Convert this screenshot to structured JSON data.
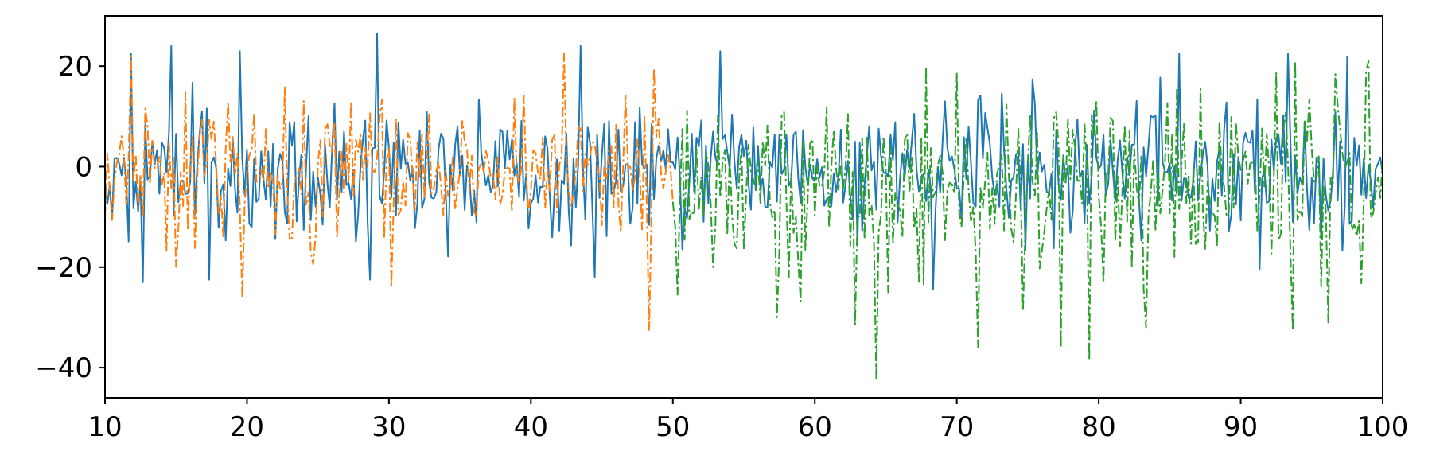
{
  "chart_data": {
    "type": "line",
    "title": "",
    "xlabel": "",
    "ylabel": "",
    "xlim": [
      10,
      100
    ],
    "ylim": [
      -46,
      30
    ],
    "grid": false,
    "legend": "none",
    "x_ticks": [
      10,
      20,
      30,
      40,
      50,
      60,
      70,
      80,
      90,
      100
    ],
    "y_ticks": [
      20,
      0,
      -20,
      -40
    ],
    "x_tick_labels": [
      "10",
      "20",
      "30",
      "40",
      "50",
      "60",
      "70",
      "80",
      "90",
      "100"
    ],
    "y_tick_labels": [
      "20",
      "0",
      "−20",
      "−40"
    ],
    "series": [
      {
        "color": "#1f77b4",
        "linestyle": "solid",
        "x_range": [
          10,
          100
        ],
        "points_per_unit": 6,
        "mean": -1,
        "sd": 7.5,
        "clip": [
          -25,
          27
        ],
        "spikes": [
          [
            11.8,
            22.5
          ],
          [
            12.6,
            -23
          ],
          [
            14.7,
            24
          ],
          [
            17.3,
            -22.5
          ],
          [
            19.5,
            23
          ],
          [
            29.2,
            26.5
          ],
          [
            28.6,
            -22.5
          ],
          [
            43.5,
            24
          ],
          [
            44.5,
            -22
          ],
          [
            53.4,
            23
          ],
          [
            85.6,
            22.5
          ],
          [
            93.3,
            22.5
          ]
        ]
      },
      {
        "color": "#ff7f0e",
        "linestyle": "dashdot",
        "x_range": [
          10,
          50
        ],
        "points_per_unit": 6,
        "mean": -1,
        "sd": 8,
        "clip": [
          -33,
          23
        ],
        "spikes": [
          [
            11.9,
            22
          ],
          [
            19.7,
            -26
          ],
          [
            30.2,
            -24
          ],
          [
            42.4,
            22.5
          ],
          [
            48.3,
            -32.5
          ],
          [
            48.6,
            19.5
          ]
        ]
      },
      {
        "color": "#2ca02c",
        "linestyle": "dashdot",
        "x_range": [
          50,
          100
        ],
        "points_per_unit": 6,
        "mean": -3,
        "sd": 10,
        "clip": [
          -43,
          21
        ],
        "spikes": [
          [
            50.3,
            -25.5
          ],
          [
            57.3,
            -30
          ],
          [
            62.8,
            -31.5
          ],
          [
            64.4,
            -42.5
          ],
          [
            71.5,
            -36
          ],
          [
            77.3,
            -36
          ],
          [
            79.3,
            -38.5
          ],
          [
            83.4,
            -32
          ],
          [
            93.6,
            -32.5
          ],
          [
            96.1,
            -31
          ],
          [
            98.9,
            19
          ]
        ]
      }
    ]
  }
}
